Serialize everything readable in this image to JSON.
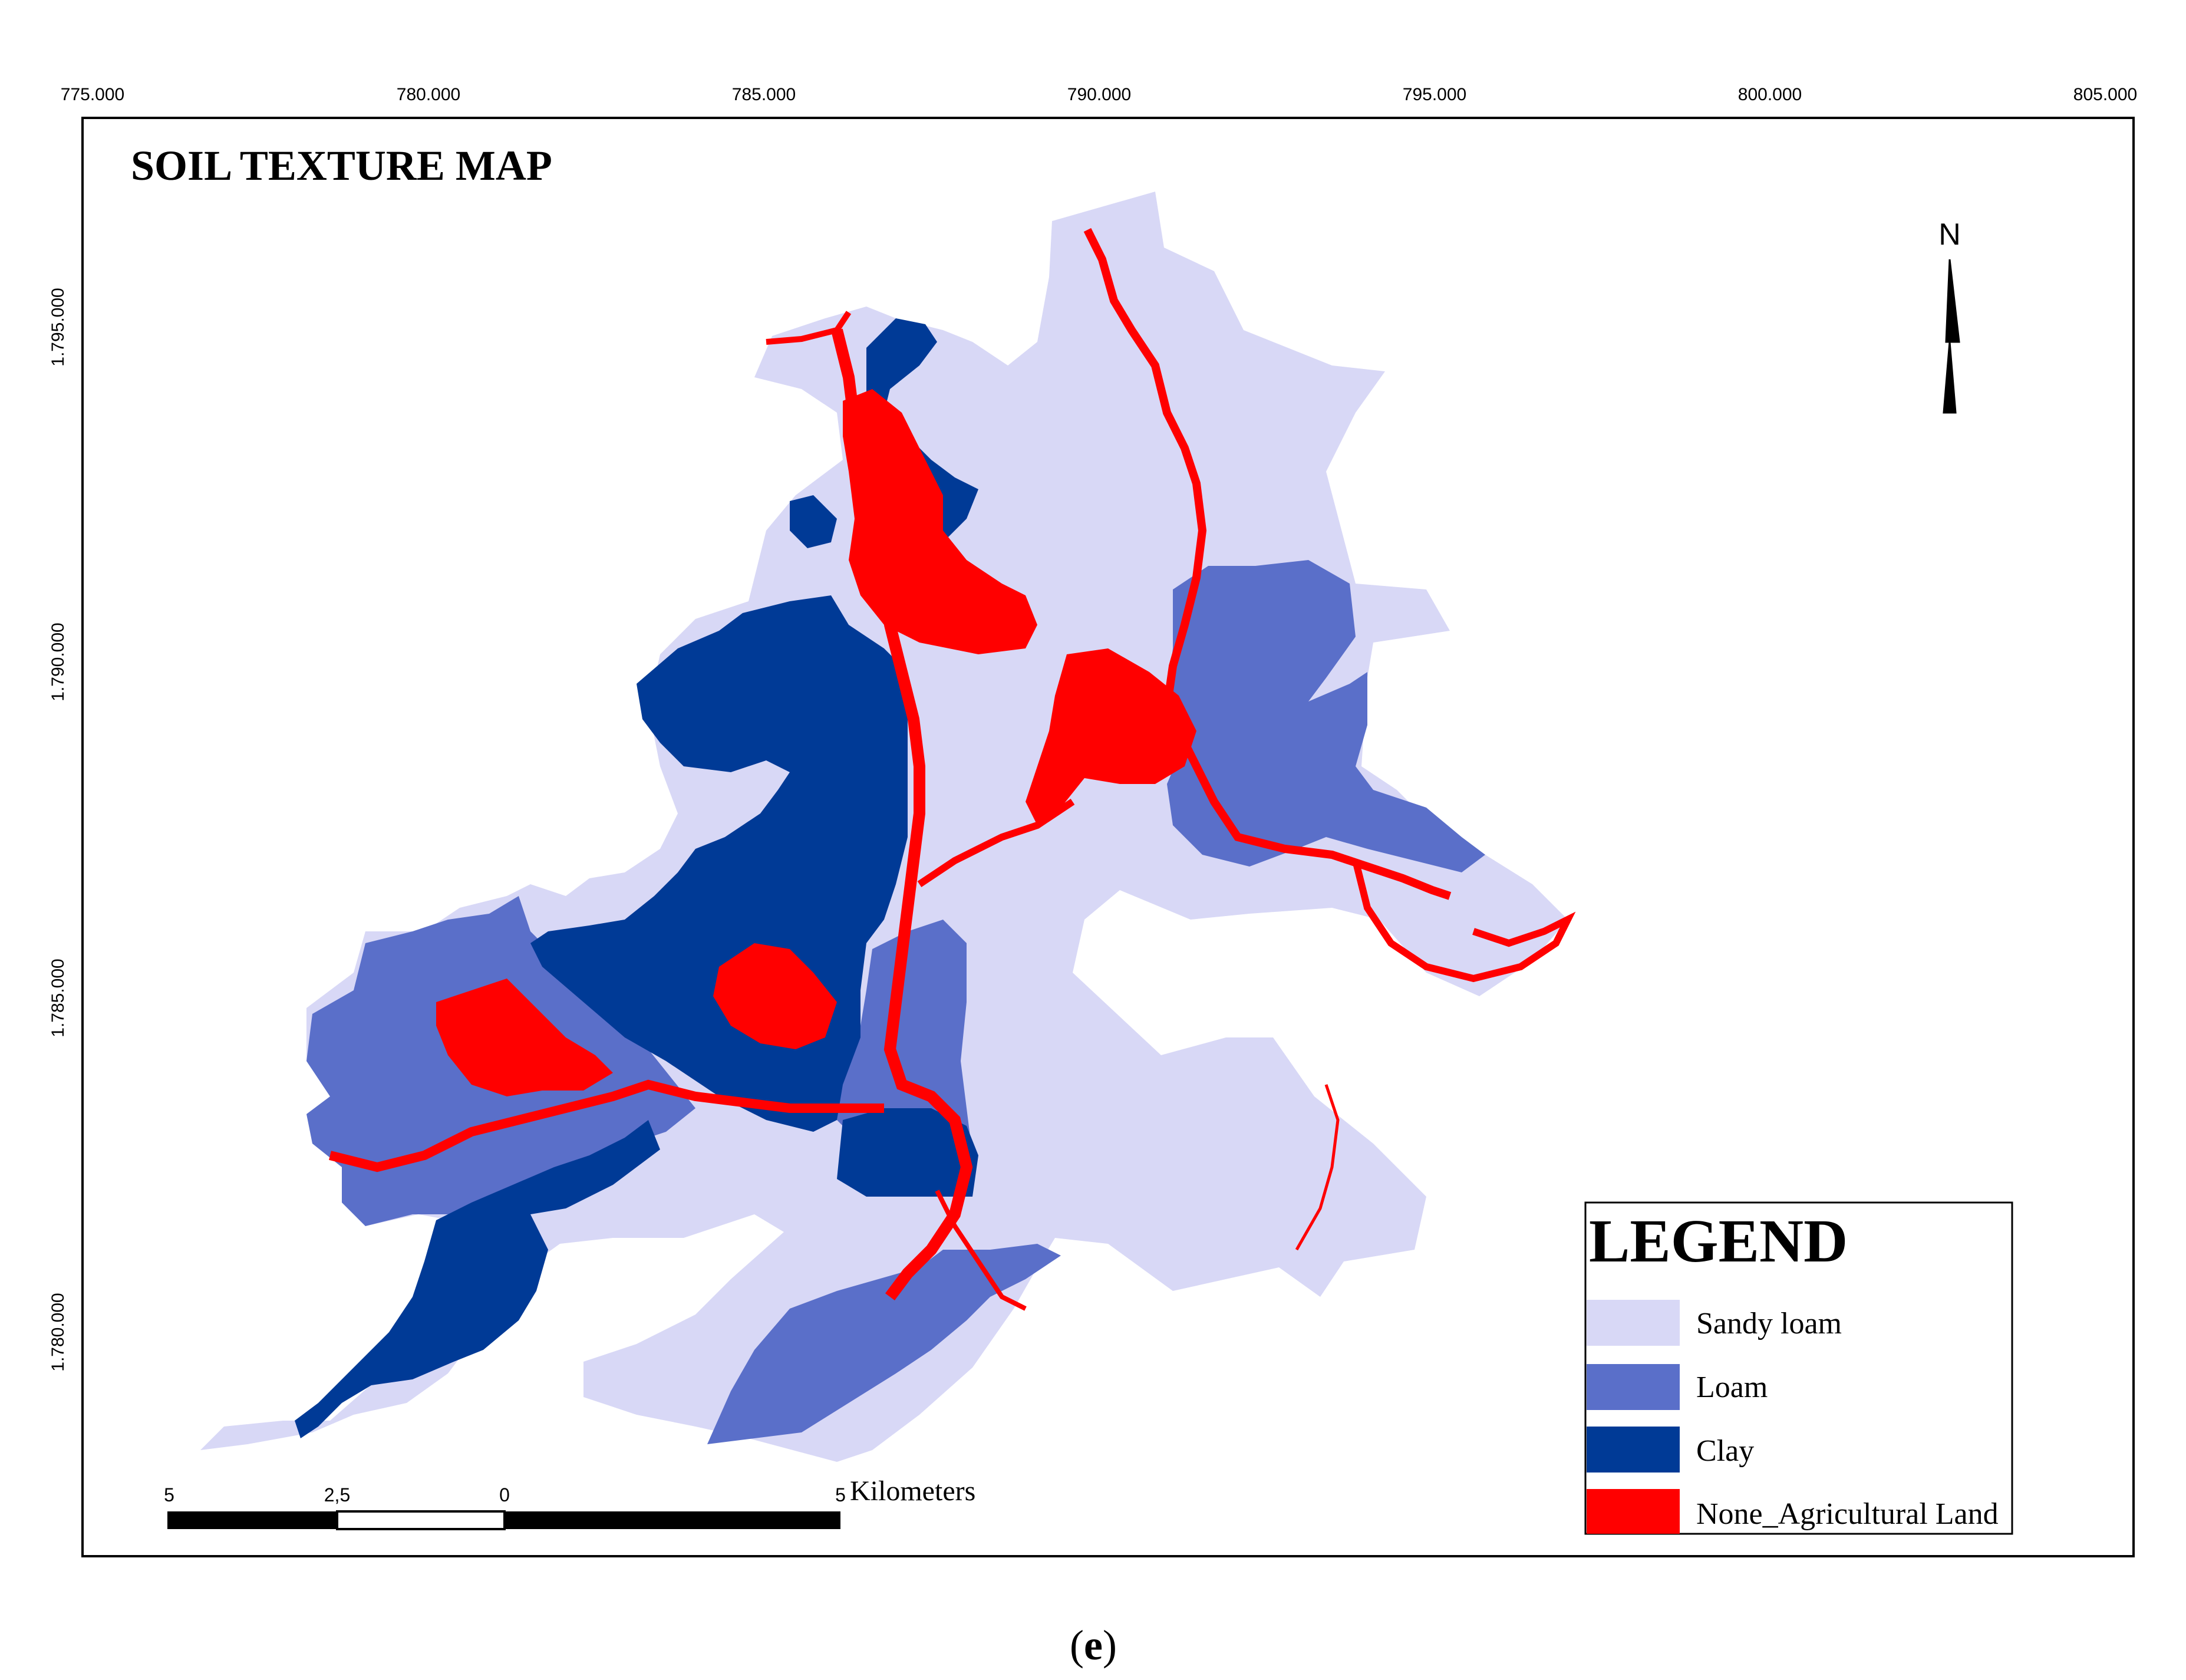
{
  "map": {
    "title": "SOIL TEXTURE MAP",
    "x_ticks": [
      "775.000",
      "780.000",
      "785.000",
      "790.000",
      "795.000",
      "800.000",
      "805.000"
    ],
    "y_ticks": [
      "1.795.000",
      "1.790.000",
      "1.785.000",
      "1.780.000"
    ],
    "north_label": "N"
  },
  "legend": {
    "title": "LEGEND",
    "items": [
      {
        "label": "Sandy loam",
        "color": "#d8d8f6"
      },
      {
        "label": "Loam",
        "color": "#5a6fc9"
      },
      {
        "label": "Clay",
        "color": "#003a96"
      },
      {
        "label": "None_Agricultural Land",
        "color": "#ff0000"
      }
    ]
  },
  "scalebar": {
    "labels": [
      "5",
      "2,5",
      "0",
      "5"
    ],
    "units": "Kilometers"
  },
  "caption": {
    "open": "(",
    "letter": "e",
    "close": ")"
  },
  "colors": {
    "sandy_loam": "#d8d8f6",
    "loam": "#5a6fc9",
    "clay": "#003a96",
    "non_agricultural": "#ff0000",
    "frame": "#000000"
  }
}
